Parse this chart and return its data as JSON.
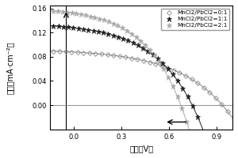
{
  "title": "",
  "xlabel": "电压（V）",
  "ylabel": "电流（mA·cm⁻²）",
  "xlim": [
    -0.15,
    1.0
  ],
  "ylim": [
    -0.04,
    0.165
  ],
  "xticks": [
    0.0,
    0.3,
    0.6,
    0.9
  ],
  "yticks": [
    0.0,
    0.04,
    0.08,
    0.12,
    0.16
  ],
  "series": [
    {
      "label": "MnCl2/PbCl2=0:1",
      "marker": "D",
      "ms": 3.0,
      "color": "#888888",
      "mfc": "none",
      "Jsc": 0.088,
      "Voc": 0.92,
      "n": 12.0,
      "lw": 0.7
    },
    {
      "label": "MnCl2/PbCl2=1:1",
      "marker": "*",
      "ms": 4.5,
      "color": "#222222",
      "mfc": "#222222",
      "Jsc": 0.128,
      "Voc": 0.73,
      "n": 10.0,
      "lw": 0.7
    },
    {
      "label": "MnCl2/PbCl2=2:1",
      "marker": "*",
      "ms": 4.5,
      "color": "#aaaaaa",
      "mfc": "#aaaaaa",
      "Jsc": 0.152,
      "Voc": 0.66,
      "n": 9.0,
      "lw": 0.7
    }
  ],
  "vline_x": -0.05,
  "hline_y": 0.0,
  "n_markers": 30
}
